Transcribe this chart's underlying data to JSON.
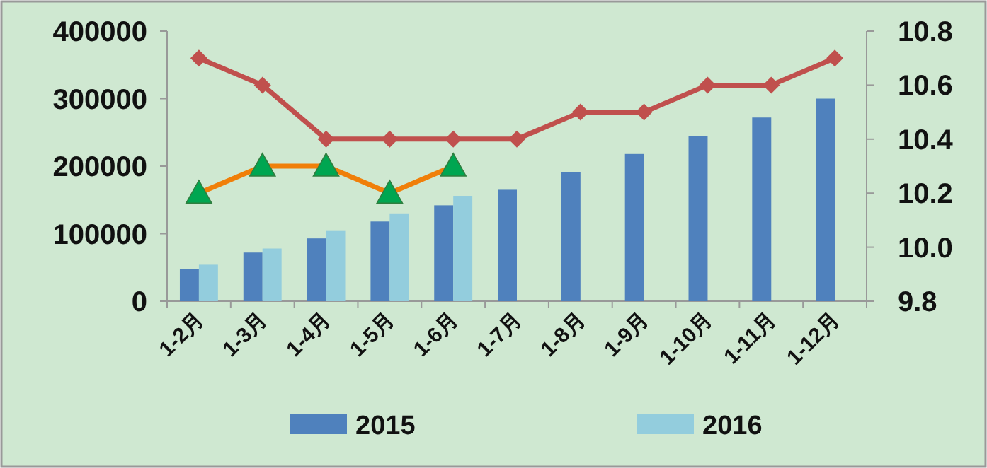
{
  "chart_data": {
    "type": "bar",
    "categories": [
      "1-2月",
      "1-3月",
      "1-4月",
      "1-5月",
      "1-6月",
      "1-7月",
      "1-8月",
      "1-9月",
      "1-10月",
      "1-11月",
      "1-12月"
    ],
    "series": [
      {
        "name": "2015",
        "color": "#4f81bd",
        "values": [
          48000,
          72000,
          93000,
          118000,
          142000,
          165000,
          191000,
          218000,
          244000,
          272000,
          300000
        ]
      },
      {
        "name": "2016",
        "color": "#93cddd",
        "values": [
          54000,
          78000,
          104000,
          129000,
          156000,
          null,
          null,
          null,
          null,
          null,
          null
        ]
      },
      {
        "type": "line",
        "axis": "y2",
        "color": "#c0504d",
        "marker": "diamond",
        "values": [
          10.7,
          10.6,
          10.4,
          10.4,
          10.4,
          10.4,
          10.5,
          10.5,
          10.6,
          10.6,
          10.7
        ]
      },
      {
        "type": "line",
        "axis": "y2",
        "color": "#f07f09",
        "marker": "triangle",
        "values": [
          10.2,
          10.3,
          10.3,
          10.2,
          10.3,
          null,
          null,
          null,
          null,
          null,
          null
        ]
      }
    ],
    "ylim": [
      0,
      400000
    ],
    "yticks": [
      0,
      100000,
      200000,
      300000,
      400000
    ],
    "y2lim": [
      9.8,
      10.8
    ],
    "y2ticks": [
      9.8,
      {
        "value": 10,
        "label": "10.0"
      },
      10.2,
      10.4,
      10.6,
      10.8
    ],
    "legend": "bottom",
    "grid": false,
    "line_style": "solid"
  }
}
